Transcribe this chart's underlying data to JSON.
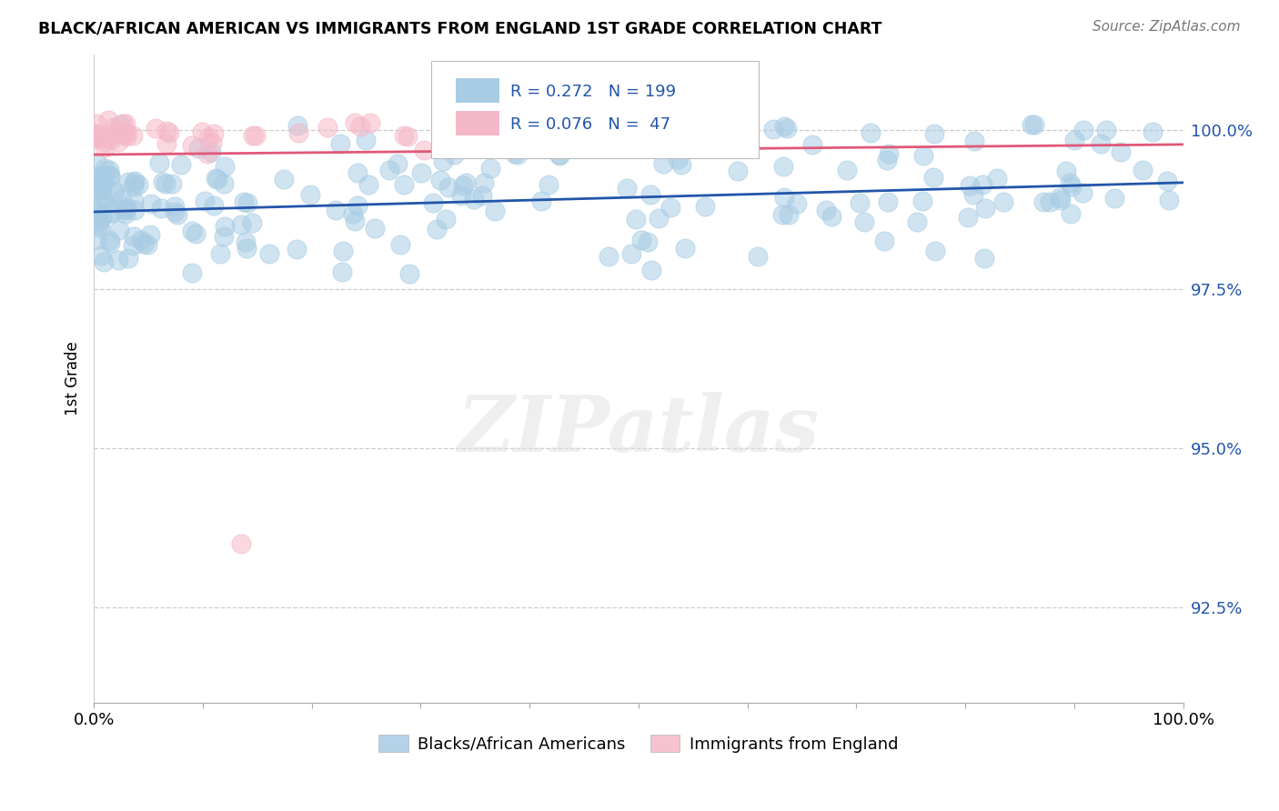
{
  "title": "BLACK/AFRICAN AMERICAN VS IMMIGRANTS FROM ENGLAND 1ST GRADE CORRELATION CHART",
  "source": "Source: ZipAtlas.com",
  "ylabel": "1st Grade",
  "y_ticks": [
    92.5,
    95.0,
    97.5,
    100.0
  ],
  "y_tick_labels": [
    "92.5%",
    "95.0%",
    "97.5%",
    "100.0%"
  ],
  "x_min": 0.0,
  "x_max": 100.0,
  "y_min": 91.0,
  "y_max": 101.2,
  "legend_blue_label": "Blacks/African Americans",
  "legend_pink_label": "Immigrants from England",
  "R_blue": 0.272,
  "N_blue": 199,
  "R_pink": 0.076,
  "N_pink": 47,
  "blue_color": "#a8cce4",
  "pink_color": "#f5b8c8",
  "blue_line_color": "#2255aa",
  "pink_line_color": "#e05878",
  "blue_trend_y_start": 98.72,
  "blue_trend_y_end": 99.18,
  "pink_trend_y_start": 99.62,
  "pink_trend_y_end": 99.78,
  "watermark": "ZIPatlas",
  "x_tick_positions": [
    0,
    10,
    20,
    30,
    40,
    50,
    60,
    70,
    80,
    90,
    100
  ],
  "x_tick_labels": [
    "0.0%",
    "",
    "",
    "",
    "",
    "",
    "",
    "",
    "",
    "",
    "100.0%"
  ]
}
